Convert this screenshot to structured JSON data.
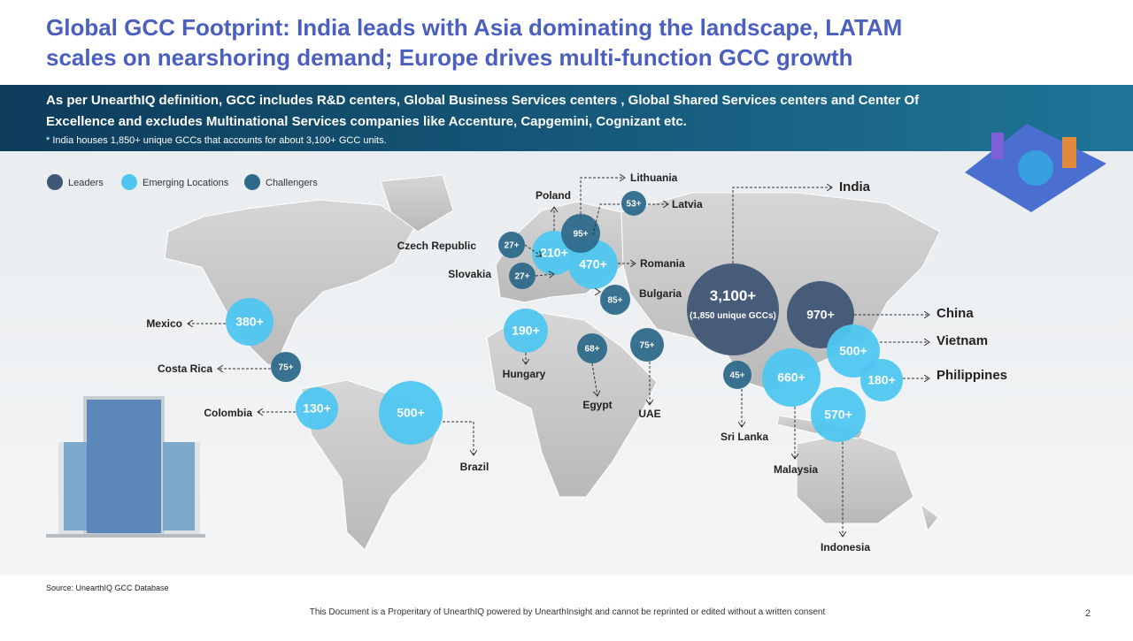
{
  "header": {
    "title": [
      "Global GCC Footprint: India leads with Asia dominating the landscape, LATAM",
      "scales on nearshoring demand; Europe drives multi-function GCC growth"
    ],
    "definition": [
      "As per UnearthIQ definition, GCC includes R&D centers, Global Business Services centers , Global Shared Services centers and Center Of",
      "Excellence and excludes Multinational Services companies like Accenture, Capgemini, Cognizant etc."
    ],
    "note": "* India houses 1,850+  unique GCCs that accounts for about 3,100+ GCC units."
  },
  "legend": [
    {
      "name": "Leaders",
      "color": "#3f5674",
      "locations": [
        {
          "name": "India",
          "value": "3,100+",
          "detail": "(1,850 unique GCCs)"
        },
        {
          "name": "China",
          "value": "970+"
        }
      ]
    },
    {
      "name": "Emerging Locations",
      "color": "#4fc6f0",
      "locations": [
        {
          "name": "Mexico",
          "value": "380+"
        },
        {
          "name": "Colombia",
          "value": "130+"
        },
        {
          "name": "Brazil",
          "value": "500+"
        },
        {
          "name": "Poland",
          "value": "210+"
        },
        {
          "name": "Romania",
          "value": "470+"
        },
        {
          "name": "Hungary",
          "value": "190+"
        },
        {
          "name": "Vietnam",
          "value": "500+"
        },
        {
          "name": "Philippines",
          "value": "180+"
        },
        {
          "name": "Malaysia",
          "value": "660+"
        },
        {
          "name": "Indonesia",
          "value": "570+"
        }
      ]
    },
    {
      "name": "Challengers",
      "color": "#2e6a8a",
      "locations": [
        {
          "name": "Costa Rica",
          "value": "75+"
        },
        {
          "name": "Lithuania",
          "value": "95+"
        },
        {
          "name": "Latvia",
          "value": "53+"
        },
        {
          "name": "Czech Republic",
          "value": "27+"
        },
        {
          "name": "Slovakia",
          "value": "27+"
        },
        {
          "name": "Bulgaria",
          "value": "85+"
        },
        {
          "name": "Egypt",
          "value": "68+"
        },
        {
          "name": "UAE",
          "value": "75+"
        },
        {
          "name": "Sri Lanka",
          "value": "45+"
        }
      ]
    }
  ],
  "source": "Source: UnearthIQ GCC Database",
  "footer": "This Document is a Properitary of UnearthIQ powered by UnearthInsight and cannot be reprinted or edited without a written consent",
  "page": "2"
}
